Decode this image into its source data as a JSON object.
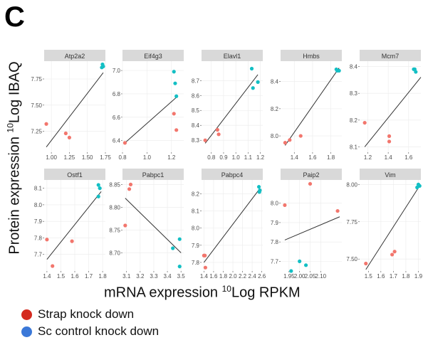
{
  "figure": {
    "panel_letter": "C",
    "ylabel_pre": "Protein expression ",
    "ylabel_sup": "10",
    "ylabel_post": "Log IBAQ",
    "xlabel_pre": "mRNA expression ",
    "xlabel_sup": "10",
    "xlabel_post": "Log RPKM"
  },
  "legend": {
    "items": [
      {
        "label": "Strap knock down",
        "color": "#d42a1f"
      },
      {
        "label": "Sc control knock down",
        "color": "#3b78d8"
      }
    ]
  },
  "colors": {
    "strap_points": "#f2766d",
    "control_points": "#13bfc4",
    "strip_bg": "#d9d9d9",
    "strip_text": "#333333",
    "panel_bg": "#ffffff",
    "grid": "#ebebeb",
    "axis_text": "#4d4d4d",
    "fit_line": "#333333"
  },
  "chart_data": [
    {
      "type": "scatter",
      "title": "Atp2a2",
      "xlim": [
        0.9,
        1.75
      ],
      "ylim": [
        7.05,
        7.92
      ],
      "xticks": [
        {
          "v": 1.0,
          "l": "1.00"
        },
        {
          "v": 1.25,
          "l": "1.25"
        },
        {
          "v": 1.5,
          "l": "1.50"
        },
        {
          "v": 1.75,
          "l": "1.75"
        }
      ],
      "yticks": [
        {
          "v": 7.25,
          "l": "7.25"
        },
        {
          "v": 7.5,
          "l": "7.50"
        },
        {
          "v": 7.75,
          "l": "7.75"
        }
      ],
      "strap": [
        [
          0.93,
          7.32
        ],
        [
          1.2,
          7.23
        ],
        [
          1.25,
          7.19
        ]
      ],
      "control": [
        [
          1.7,
          7.86
        ],
        [
          1.71,
          7.89
        ],
        [
          1.72,
          7.87
        ]
      ],
      "fit": [
        [
          0.93,
          7.1
        ],
        [
          1.72,
          7.81
        ]
      ]
    },
    {
      "type": "scatter",
      "title": "Eif4g3",
      "xlim": [
        0.8,
        1.3
      ],
      "ylim": [
        6.3,
        7.08
      ],
      "xticks": [
        {
          "v": 0.8,
          "l": "0.8"
        },
        {
          "v": 1.0,
          "l": "1.0"
        },
        {
          "v": 1.2,
          "l": "1.2"
        }
      ],
      "yticks": [
        {
          "v": 6.4,
          "l": "6.4"
        },
        {
          "v": 6.6,
          "l": "6.6"
        },
        {
          "v": 6.8,
          "l": "6.8"
        },
        {
          "v": 7.0,
          "l": "7.0"
        }
      ],
      "strap": [
        [
          0.82,
          6.38
        ],
        [
          1.22,
          6.63
        ],
        [
          1.24,
          6.49
        ]
      ],
      "control": [
        [
          1.22,
          6.99
        ],
        [
          1.23,
          6.89
        ],
        [
          1.24,
          6.78
        ]
      ],
      "fit": [
        [
          0.82,
          6.38
        ],
        [
          1.24,
          6.77
        ]
      ]
    },
    {
      "type": "scatter",
      "title": "Elavl1",
      "xlim": [
        0.72,
        1.22
      ],
      "ylim": [
        8.22,
        8.83
      ],
      "xticks": [
        {
          "v": 0.8,
          "l": "0.8"
        },
        {
          "v": 0.9,
          "l": "0.9"
        },
        {
          "v": 1.0,
          "l": "1.0"
        },
        {
          "v": 1.1,
          "l": "1.1"
        },
        {
          "v": 1.2,
          "l": "1.2"
        }
      ],
      "yticks": [
        {
          "v": 8.3,
          "l": "8.3"
        },
        {
          "v": 8.4,
          "l": "8.4"
        },
        {
          "v": 8.5,
          "l": "8.5"
        },
        {
          "v": 8.6,
          "l": "8.6"
        },
        {
          "v": 8.7,
          "l": "8.7"
        }
      ],
      "strap": [
        [
          0.75,
          8.3
        ],
        [
          0.85,
          8.37
        ],
        [
          0.86,
          8.34
        ]
      ],
      "control": [
        [
          1.13,
          8.78
        ],
        [
          1.14,
          8.65
        ],
        [
          1.18,
          8.69
        ]
      ],
      "fit": [
        [
          0.75,
          8.28
        ],
        [
          1.18,
          8.74
        ]
      ]
    },
    {
      "type": "scatter",
      "title": "Hmbs",
      "xlim": [
        1.25,
        1.92
      ],
      "ylim": [
        7.88,
        8.55
      ],
      "xticks": [
        {
          "v": 1.4,
          "l": "1.4"
        },
        {
          "v": 1.6,
          "l": "1.6"
        },
        {
          "v": 1.8,
          "l": "1.8"
        }
      ],
      "yticks": [
        {
          "v": 8.0,
          "l": "8.0"
        },
        {
          "v": 8.2,
          "l": "8.2"
        },
        {
          "v": 8.4,
          "l": "8.4"
        }
      ],
      "strap": [
        [
          1.3,
          7.95
        ],
        [
          1.35,
          7.97
        ],
        [
          1.47,
          8.0
        ]
      ],
      "control": [
        [
          1.86,
          8.49
        ],
        [
          1.87,
          8.48
        ],
        [
          1.89,
          8.48
        ]
      ],
      "fit": [
        [
          1.3,
          7.93
        ],
        [
          1.89,
          8.5
        ]
      ]
    },
    {
      "type": "scatter",
      "title": "Mcm7",
      "xlim": [
        1.12,
        1.72
      ],
      "ylim": [
        8.08,
        8.42
      ],
      "xticks": [
        {
          "v": 1.2,
          "l": "1.2"
        },
        {
          "v": 1.4,
          "l": "1.4"
        },
        {
          "v": 1.6,
          "l": "1.6"
        }
      ],
      "yticks": [
        {
          "v": 8.1,
          "l": "8.1"
        },
        {
          "v": 8.2,
          "l": "8.2"
        },
        {
          "v": 8.3,
          "l": "8.3"
        },
        {
          "v": 8.4,
          "l": "8.4"
        }
      ],
      "strap": [
        [
          1.17,
          8.19
        ],
        [
          1.41,
          8.14
        ],
        [
          1.41,
          8.12
        ]
      ],
      "control": [
        [
          1.65,
          8.39
        ],
        [
          1.67,
          8.38
        ],
        [
          1.66,
          8.39
        ]
      ],
      "fit": [
        [
          1.17,
          8.1
        ],
        [
          1.72,
          8.36
        ]
      ]
    },
    {
      "type": "scatter",
      "title": "Ostf1",
      "xlim": [
        1.38,
        1.82
      ],
      "ylim": [
        7.6,
        8.15
      ],
      "xticks": [
        {
          "v": 1.4,
          "l": "1.4"
        },
        {
          "v": 1.5,
          "l": "1.5"
        },
        {
          "v": 1.6,
          "l": "1.6"
        },
        {
          "v": 1.7,
          "l": "1.7"
        },
        {
          "v": 1.8,
          "l": "1.8"
        }
      ],
      "yticks": [
        {
          "v": 7.7,
          "l": "7.7"
        },
        {
          "v": 7.8,
          "l": "7.8"
        },
        {
          "v": 7.9,
          "l": "7.9"
        },
        {
          "v": 8.0,
          "l": "8.0"
        },
        {
          "v": 8.1,
          "l": "8.1"
        }
      ],
      "strap": [
        [
          1.4,
          7.79
        ],
        [
          1.44,
          7.63
        ],
        [
          1.58,
          7.78
        ]
      ],
      "control": [
        [
          1.77,
          8.12
        ],
        [
          1.78,
          8.1
        ],
        [
          1.77,
          8.05
        ]
      ],
      "fit": [
        [
          1.4,
          7.67
        ],
        [
          1.79,
          8.08
        ]
      ]
    },
    {
      "type": "scatter",
      "title": "Pabpc1",
      "xlim": [
        3.07,
        3.52
      ],
      "ylim": [
        8.66,
        8.86
      ],
      "xticks": [
        {
          "v": 3.1,
          "l": "3.1"
        },
        {
          "v": 3.2,
          "l": "3.2"
        },
        {
          "v": 3.3,
          "l": "3.3"
        },
        {
          "v": 3.4,
          "l": "3.4"
        },
        {
          "v": 3.5,
          "l": "3.5"
        }
      ],
      "yticks": [
        {
          "v": 8.7,
          "l": "8.70"
        },
        {
          "v": 8.75,
          "l": "8.75"
        },
        {
          "v": 8.8,
          "l": "8.80"
        },
        {
          "v": 8.85,
          "l": "8.85"
        }
      ],
      "strap": [
        [
          3.09,
          8.76
        ],
        [
          3.12,
          8.84
        ],
        [
          3.13,
          8.85
        ]
      ],
      "control": [
        [
          3.44,
          8.71
        ],
        [
          3.49,
          8.73
        ],
        [
          3.49,
          8.67
        ]
      ],
      "fit": [
        [
          3.09,
          8.82
        ],
        [
          3.5,
          8.7
        ]
      ]
    },
    {
      "type": "scatter",
      "title": "Pabpc4",
      "xlim": [
        1.35,
        2.62
      ],
      "ylim": [
        7.75,
        8.28
      ],
      "xticks": [
        {
          "v": 1.4,
          "l": "1.4"
        },
        {
          "v": 1.6,
          "l": "1.6"
        },
        {
          "v": 1.8,
          "l": "1.8"
        },
        {
          "v": 2.0,
          "l": "2.0"
        },
        {
          "v": 2.2,
          "l": "2.2"
        },
        {
          "v": 2.4,
          "l": "2.4"
        },
        {
          "v": 2.6,
          "l": "2.6"
        }
      ],
      "yticks": [
        {
          "v": 7.8,
          "l": "7.8"
        },
        {
          "v": 7.9,
          "l": "7.9"
        },
        {
          "v": 8.0,
          "l": "8.0"
        },
        {
          "v": 8.1,
          "l": "8.1"
        },
        {
          "v": 8.2,
          "l": "8.2"
        }
      ],
      "strap": [
        [
          1.4,
          7.84
        ],
        [
          1.42,
          7.84
        ],
        [
          1.43,
          7.77
        ]
      ],
      "control": [
        [
          2.54,
          8.24
        ],
        [
          2.55,
          8.21
        ],
        [
          2.56,
          8.22
        ]
      ],
      "fit": [
        [
          1.4,
          7.8
        ],
        [
          2.56,
          8.23
        ]
      ]
    },
    {
      "type": "scatter",
      "title": "Paip2",
      "xlim": [
        1.91,
        2.2
      ],
      "ylim": [
        7.65,
        8.12
      ],
      "xticks": [
        {
          "v": 1.95,
          "l": "1.95"
        },
        {
          "v": 2.0,
          "l": "2.00"
        },
        {
          "v": 2.05,
          "l": "2.05"
        },
        {
          "v": 2.1,
          "l": "2.10"
        }
      ],
      "yticks": [
        {
          "v": 7.7,
          "l": "7.7"
        },
        {
          "v": 7.8,
          "l": "7.8"
        },
        {
          "v": 7.9,
          "l": "7.9"
        },
        {
          "v": 8.0,
          "l": "8.0"
        }
      ],
      "strap": [
        [
          1.93,
          7.99
        ],
        [
          2.05,
          8.1
        ],
        [
          2.18,
          7.96
        ]
      ],
      "control": [
        [
          1.96,
          7.65
        ],
        [
          2.0,
          7.7
        ],
        [
          2.03,
          7.68
        ]
      ],
      "fit": [
        [
          1.93,
          7.81
        ],
        [
          2.19,
          7.93
        ]
      ]
    },
    {
      "type": "scatter",
      "title": "Vim",
      "xlim": [
        1.43,
        1.92
      ],
      "ylim": [
        7.42,
        8.03
      ],
      "xticks": [
        {
          "v": 1.5,
          "l": "1.5"
        },
        {
          "v": 1.6,
          "l": "1.6"
        },
        {
          "v": 1.7,
          "l": "1.7"
        },
        {
          "v": 1.8,
          "l": "1.8"
        },
        {
          "v": 1.9,
          "l": "1.9"
        }
      ],
      "yticks": [
        {
          "v": 7.5,
          "l": "7.50"
        },
        {
          "v": 7.75,
          "l": "7.75"
        },
        {
          "v": 8.0,
          "l": "8.00"
        }
      ],
      "strap": [
        [
          1.48,
          7.47
        ],
        [
          1.69,
          7.53
        ],
        [
          1.71,
          7.55
        ]
      ],
      "control": [
        [
          1.89,
          7.98
        ],
        [
          1.9,
          8.0
        ],
        [
          1.91,
          7.99
        ]
      ],
      "fit": [
        [
          1.48,
          7.43
        ],
        [
          1.91,
          7.99
        ]
      ]
    }
  ]
}
